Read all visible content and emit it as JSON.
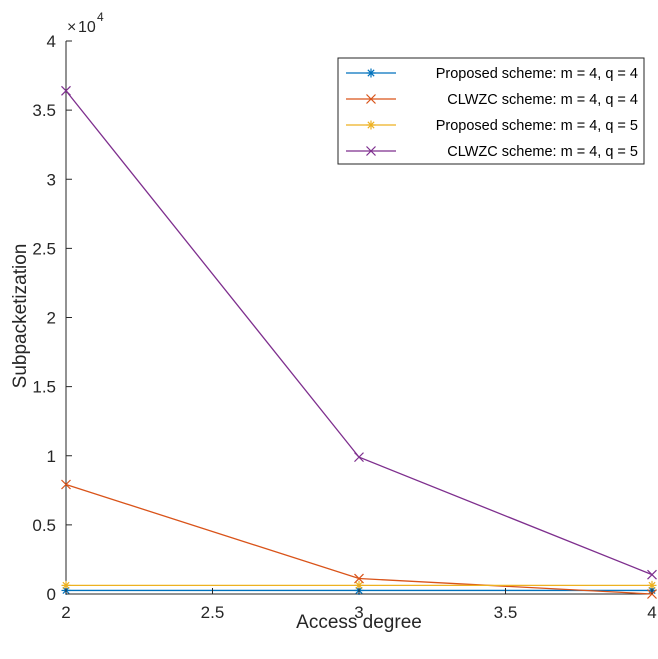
{
  "chart_data": {
    "type": "line",
    "xlabel": "Access degree",
    "ylabel": "Subpacketization",
    "xlim": [
      2,
      4
    ],
    "ylim": [
      0,
      40000
    ],
    "x": [
      2,
      3,
      4
    ],
    "x_ticks": [
      "2",
      "2.5",
      "3",
      "3.5",
      "4"
    ],
    "y_ticks": [
      "0",
      "0.5",
      "1",
      "1.5",
      "2",
      "2.5",
      "3",
      "3.5",
      "4"
    ],
    "y_multiplier": {
      "base": "10",
      "exponent": "4",
      "symbol": "×"
    },
    "grid": false,
    "legend_position": "top-right",
    "series": [
      {
        "name": "Proposed scheme: m = 4, q = 4",
        "values": [
          256,
          256,
          256
        ],
        "color": "#0072BD",
        "marker": "*"
      },
      {
        "name": "CLWZC scheme: m = 4, q = 4",
        "values": [
          7920,
          1120,
          0
        ],
        "color": "#D95319",
        "marker": "x"
      },
      {
        "name": "Proposed scheme: m = 4, q = 5",
        "values": [
          625,
          625,
          625
        ],
        "color": "#EDB120",
        "marker": "*"
      },
      {
        "name": "CLWZC scheme: m = 4, q = 5",
        "values": [
          36400,
          9900,
          1400
        ],
        "color": "#7E2F8E",
        "marker": "x"
      }
    ]
  }
}
